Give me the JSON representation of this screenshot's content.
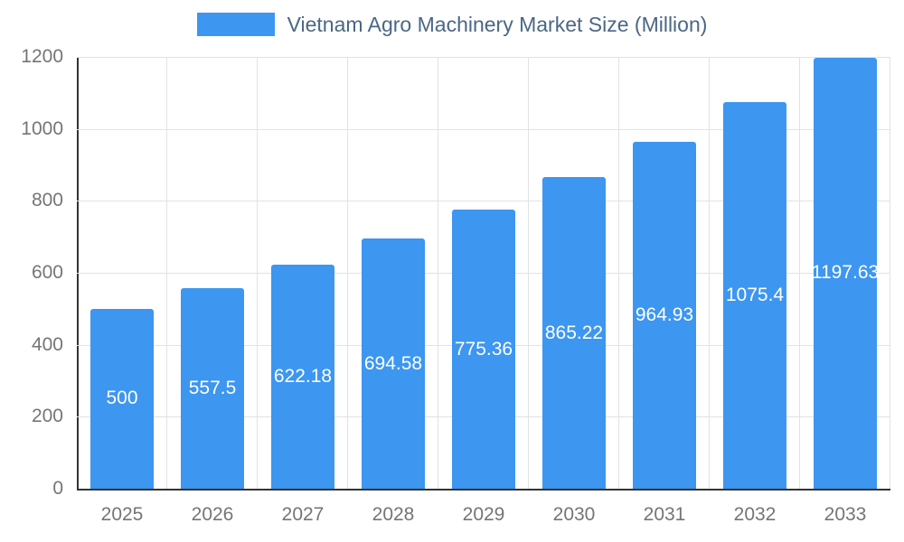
{
  "chart_data": {
    "type": "bar",
    "title": "Vietnam Agro Machinery Market Size (Million)",
    "categories": [
      "2025",
      "2026",
      "2027",
      "2028",
      "2029",
      "2030",
      "2031",
      "2032",
      "2033"
    ],
    "values": [
      500,
      557.5,
      622.18,
      694.58,
      775.36,
      865.22,
      964.93,
      1075.4,
      1197.63
    ],
    "value_labels": [
      "500",
      "557.5",
      "622.18",
      "694.58",
      "775.36",
      "865.22",
      "964.93",
      "1075.4",
      "1197.63"
    ],
    "xlabel": "",
    "ylabel": "",
    "ylim": [
      0,
      1200
    ],
    "yticks": [
      0,
      200,
      400,
      600,
      800,
      1000,
      1200
    ],
    "grid": true,
    "legend_position": "top",
    "series_name": "Vietnam Agro Machinery Market Size (Million)"
  },
  "colors": {
    "bar": "#3D96F0",
    "title_text": "#4A6785",
    "axis_tick_text": "#757575",
    "gridline": "#e2e2e2",
    "axis_line": "#333333",
    "value_label_text": "#ffffff",
    "background": "#ffffff"
  }
}
